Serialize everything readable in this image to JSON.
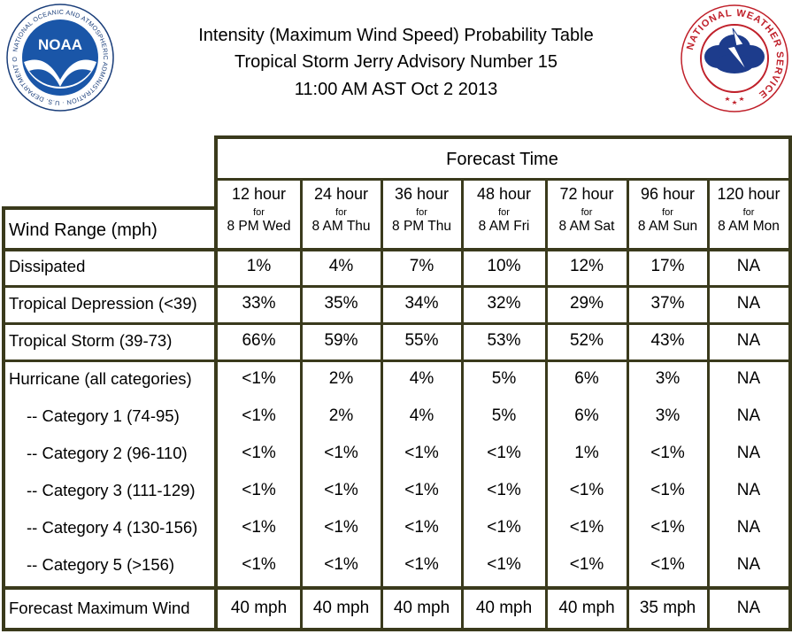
{
  "header": {
    "title_line1": "Intensity (Maximum Wind Speed) Probability Table",
    "title_line2": "Tropical Storm Jerry Advisory Number 15",
    "title_line3": "11:00 AM AST Oct 2 2013",
    "noaa_logo": {
      "icon": "noaa-seal-icon",
      "brand": "NOAA",
      "ring_text": "NATIONAL OCEANIC AND ATMOSPHERIC ADMINISTRATION · U.S. DEPARTMENT OF COMMERCE",
      "color": "#1a56a8"
    },
    "nws_logo": {
      "icon": "nws-seal-icon",
      "ring_text": "NATIONAL WEATHER SERVICE",
      "color": "#c0202a"
    }
  },
  "table": {
    "border_color": "#3a3a1c",
    "forecast_time_label": "Forecast Time",
    "wind_range_label": "Wind Range (mph)",
    "columns": [
      {
        "hours": "12 hour",
        "for": "for",
        "when": "8 PM Wed"
      },
      {
        "hours": "24 hour",
        "for": "for",
        "when": "8 AM Thu"
      },
      {
        "hours": "36 hour",
        "for": "for",
        "when": "8 PM Thu"
      },
      {
        "hours": "48 hour",
        "for": "for",
        "when": "8 AM Fri"
      },
      {
        "hours": "72 hour",
        "for": "for",
        "when": "8 AM Sat"
      },
      {
        "hours": "96 hour",
        "for": "for",
        "when": "8 AM Sun"
      },
      {
        "hours": "120 hour",
        "for": "for",
        "when": "8 AM Mon"
      }
    ],
    "rows": [
      {
        "label": "Dissipated",
        "values": [
          "1%",
          "4%",
          "7%",
          "10%",
          "12%",
          "17%",
          "NA"
        ]
      },
      {
        "label": "Tropical Depression (<39)",
        "values": [
          "33%",
          "35%",
          "34%",
          "32%",
          "29%",
          "37%",
          "NA"
        ]
      },
      {
        "label": "Tropical Storm (39-73)",
        "values": [
          "66%",
          "59%",
          "55%",
          "53%",
          "52%",
          "43%",
          "NA"
        ]
      },
      {
        "label": "Hurricane (all categories)",
        "values": [
          "<1%",
          "2%",
          "4%",
          "5%",
          "6%",
          "3%",
          "NA"
        ]
      },
      {
        "label": "-- Category 1 (74-95)",
        "values": [
          "<1%",
          "2%",
          "4%",
          "5%",
          "6%",
          "3%",
          "NA"
        ]
      },
      {
        "label": "-- Category 2 (96-110)",
        "values": [
          "<1%",
          "<1%",
          "<1%",
          "<1%",
          "1%",
          "<1%",
          "NA"
        ]
      },
      {
        "label": "-- Category 3 (111-129)",
        "values": [
          "<1%",
          "<1%",
          "<1%",
          "<1%",
          "<1%",
          "<1%",
          "NA"
        ]
      },
      {
        "label": "-- Category 4 (130-156)",
        "values": [
          "<1%",
          "<1%",
          "<1%",
          "<1%",
          "<1%",
          "<1%",
          "NA"
        ]
      },
      {
        "label": "-- Category 5 (>156)",
        "values": [
          "<1%",
          "<1%",
          "<1%",
          "<1%",
          "<1%",
          "<1%",
          "NA"
        ]
      }
    ],
    "max_wind": {
      "label": "Forecast Maximum Wind",
      "values": [
        "40 mph",
        "40 mph",
        "40 mph",
        "40 mph",
        "40 mph",
        "35 mph",
        "NA"
      ]
    }
  }
}
